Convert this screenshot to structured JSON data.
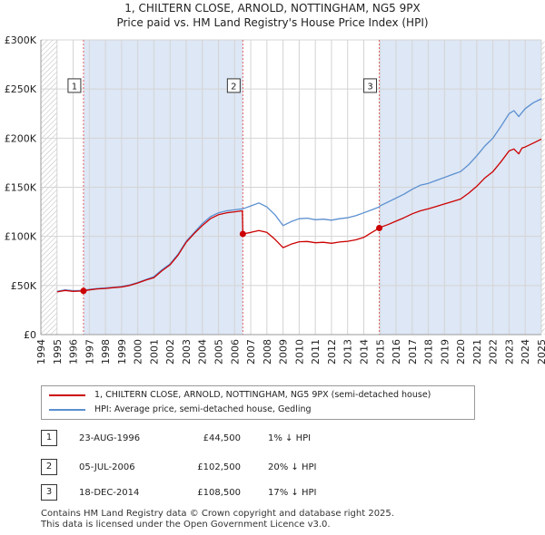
{
  "header": {
    "line1": "1, CHILTERN CLOSE, ARNOLD, NOTTINGHAM, NG5 9PX",
    "line2": "Price paid vs. HM Land Registry's House Price Index (HPI)"
  },
  "legend": {
    "red_label": "1, CHILTERN CLOSE, ARNOLD, NOTTINGHAM, NG5 9PX (semi-detached house)",
    "blue_label": "HPI: Average price, semi-detached house, Gedling"
  },
  "transactions": [
    {
      "num": "1",
      "date": "23-AUG-1996",
      "price": "£44,500",
      "hpi": "1% ↓ HPI"
    },
    {
      "num": "2",
      "date": "05-JUL-2006",
      "price": "£102,500",
      "hpi": "20% ↓ HPI"
    },
    {
      "num": "3",
      "date": "18-DEC-2014",
      "price": "£108,500",
      "hpi": "17% ↓ HPI"
    }
  ],
  "footer": {
    "line1": "Contains HM Land Registry data © Crown copyright and database right 2025.",
    "line2": "This data is licensed under the Open Government Licence v3.0."
  },
  "colors": {
    "red": "#cc0000",
    "blue": "#5b8fd0",
    "band": "#dde7f5",
    "hatch": "#b9b9b9"
  },
  "chart_data": {
    "type": "line",
    "title": "Price paid vs. HM Land Registry's House Price Index (HPI)",
    "xlim": [
      1994,
      2025
    ],
    "ylim": [
      0,
      300000
    ],
    "x_ticks": [
      "1994",
      "1995",
      "1996",
      "1997",
      "1998",
      "1999",
      "2000",
      "2001",
      "2002",
      "2003",
      "2004",
      "2005",
      "2006",
      "2007",
      "2008",
      "2009",
      "2010",
      "2011",
      "2012",
      "2013",
      "2014",
      "2015",
      "2016",
      "2017",
      "2018",
      "2019",
      "2020",
      "2021",
      "2022",
      "2023",
      "2024",
      "2025"
    ],
    "y_ticks": [
      {
        "value": 0,
        "label": "£0"
      },
      {
        "value": 50000,
        "label": "£50K"
      },
      {
        "value": 100000,
        "label": "£100K"
      },
      {
        "value": 150000,
        "label": "£150K"
      },
      {
        "value": 200000,
        "label": "£200K"
      },
      {
        "value": 250000,
        "label": "£250K"
      },
      {
        "value": 300000,
        "label": "£300K"
      }
    ],
    "hatched_ranges": [
      [
        1994,
        1995
      ],
      [
        2025,
        2025.2
      ]
    ],
    "shaded_ranges": [
      [
        1996.64,
        2006.51
      ],
      [
        2014.96,
        2025
      ]
    ],
    "sale_markers": [
      {
        "label": "1",
        "x": 1996.64,
        "y": 44500
      },
      {
        "label": "2",
        "x": 2006.51,
        "y": 102500
      },
      {
        "label": "3",
        "x": 2014.96,
        "y": 108500
      }
    ],
    "marker_label_y": 253000,
    "series": [
      {
        "name": "HPI: Average price, semi-detached house, Gedling",
        "color": "#5b8fd0",
        "points": [
          [
            1995,
            44000
          ],
          [
            1995.5,
            45500
          ],
          [
            1996,
            44800
          ],
          [
            1996.64,
            45000
          ],
          [
            1997,
            46000
          ],
          [
            1997.5,
            47000
          ],
          [
            1998,
            47500
          ],
          [
            1998.5,
            48200
          ],
          [
            1999,
            49000
          ],
          [
            1999.5,
            50500
          ],
          [
            2000,
            53000
          ],
          [
            2000.5,
            56000
          ],
          [
            2001,
            59000
          ],
          [
            2001.5,
            66000
          ],
          [
            2002,
            72000
          ],
          [
            2002.5,
            82000
          ],
          [
            2003,
            95000
          ],
          [
            2003.5,
            104000
          ],
          [
            2004,
            113000
          ],
          [
            2004.5,
            120000
          ],
          [
            2005,
            124000
          ],
          [
            2005.5,
            126000
          ],
          [
            2006,
            127000
          ],
          [
            2006.51,
            128000
          ],
          [
            2007,
            131000
          ],
          [
            2007.5,
            134000
          ],
          [
            2008,
            130000
          ],
          [
            2008.5,
            122000
          ],
          [
            2009,
            111000
          ],
          [
            2009.5,
            115000
          ],
          [
            2010,
            118000
          ],
          [
            2010.5,
            118500
          ],
          [
            2011,
            117000
          ],
          [
            2011.5,
            117500
          ],
          [
            2012,
            116500
          ],
          [
            2012.5,
            118000
          ],
          [
            2013,
            119000
          ],
          [
            2013.5,
            121000
          ],
          [
            2014,
            124000
          ],
          [
            2014.5,
            127000
          ],
          [
            2014.96,
            130000
          ],
          [
            2015,
            131000
          ],
          [
            2015.5,
            135000
          ],
          [
            2016,
            139000
          ],
          [
            2016.5,
            143000
          ],
          [
            2017,
            148000
          ],
          [
            2017.5,
            152000
          ],
          [
            2018,
            154000
          ],
          [
            2018.5,
            157000
          ],
          [
            2019,
            160000
          ],
          [
            2019.5,
            163000
          ],
          [
            2020,
            166000
          ],
          [
            2020.5,
            173000
          ],
          [
            2021,
            182000
          ],
          [
            2021.5,
            192000
          ],
          [
            2022,
            200000
          ],
          [
            2022.5,
            212000
          ],
          [
            2023,
            225000
          ],
          [
            2023.3,
            228000
          ],
          [
            2023.6,
            222000
          ],
          [
            2024,
            230000
          ],
          [
            2024.5,
            236000
          ],
          [
            2025,
            240000
          ]
        ]
      },
      {
        "name": "1, CHILTERN CLOSE, ARNOLD, NOTTINGHAM, NG5 9PX (semi-detached house)",
        "color": "#cc0000",
        "points": [
          [
            1995,
            43500
          ],
          [
            1995.5,
            45000
          ],
          [
            1996,
            44000
          ],
          [
            1996.64,
            44500
          ],
          [
            1997,
            45500
          ],
          [
            1997.5,
            46500
          ],
          [
            1998,
            47000
          ],
          [
            1998.5,
            47800
          ],
          [
            1999,
            48500
          ],
          [
            1999.5,
            50000
          ],
          [
            2000,
            52500
          ],
          [
            2000.5,
            55500
          ],
          [
            2001,
            58000
          ],
          [
            2001.5,
            65000
          ],
          [
            2002,
            71000
          ],
          [
            2002.5,
            81000
          ],
          [
            2003,
            94000
          ],
          [
            2003.5,
            103000
          ],
          [
            2004,
            111000
          ],
          [
            2004.5,
            118000
          ],
          [
            2005,
            122000
          ],
          [
            2005.5,
            124000
          ],
          [
            2006,
            125000
          ],
          [
            2006.48,
            126000
          ],
          [
            2006.51,
            102500
          ],
          [
            2007,
            104000
          ],
          [
            2007.5,
            106000
          ],
          [
            2008,
            104000
          ],
          [
            2008.5,
            97000
          ],
          [
            2009,
            88500
          ],
          [
            2009.5,
            92000
          ],
          [
            2010,
            94500
          ],
          [
            2010.5,
            94800
          ],
          [
            2011,
            93500
          ],
          [
            2011.5,
            94000
          ],
          [
            2012,
            93000
          ],
          [
            2012.5,
            94200
          ],
          [
            2013,
            95000
          ],
          [
            2013.5,
            96500
          ],
          [
            2014,
            99000
          ],
          [
            2014.5,
            104000
          ],
          [
            2014.96,
            108500
          ],
          [
            2015,
            109000
          ],
          [
            2015.5,
            112000
          ],
          [
            2016,
            115500
          ],
          [
            2016.5,
            119000
          ],
          [
            2017,
            123000
          ],
          [
            2017.5,
            126000
          ],
          [
            2018,
            128000
          ],
          [
            2018.5,
            130500
          ],
          [
            2019,
            133000
          ],
          [
            2019.5,
            135500
          ],
          [
            2020,
            138000
          ],
          [
            2020.5,
            144000
          ],
          [
            2021,
            151000
          ],
          [
            2021.5,
            159500
          ],
          [
            2022,
            166000
          ],
          [
            2022.5,
            176000
          ],
          [
            2023,
            187000
          ],
          [
            2023.3,
            189000
          ],
          [
            2023.6,
            184000
          ],
          [
            2023.8,
            190000
          ],
          [
            2024,
            191000
          ],
          [
            2024.5,
            195000
          ],
          [
            2025,
            199000
          ]
        ]
      }
    ]
  }
}
